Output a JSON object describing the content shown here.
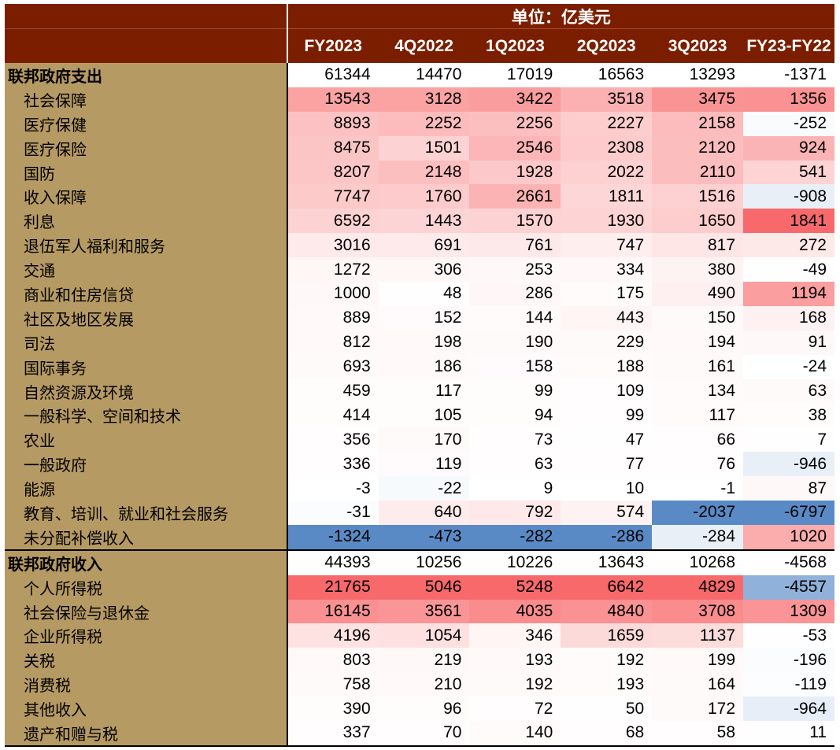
{
  "header": {
    "unit": "单位：亿美元"
  },
  "chart_data": {
    "type": "table",
    "columns": [
      "FY2023",
      "4Q2022",
      "1Q2023",
      "2Q2023",
      "3Q2023",
      "FY23-FY22"
    ],
    "rows": [
      {
        "label": "联邦政府支出",
        "level": 0,
        "values": [
          61344,
          14470,
          17019,
          16563,
          13293,
          -1371
        ]
      },
      {
        "label": "社会保障",
        "level": 1,
        "values": [
          13543,
          3128,
          3422,
          3518,
          3475,
          1356
        ]
      },
      {
        "label": "医疗保健",
        "level": 1,
        "values": [
          8893,
          2252,
          2256,
          2227,
          2158,
          -252
        ]
      },
      {
        "label": "医疗保险",
        "level": 1,
        "values": [
          8475,
          1501,
          2546,
          2308,
          2120,
          924
        ]
      },
      {
        "label": "国防",
        "level": 1,
        "values": [
          8207,
          2148,
          1928,
          2022,
          2110,
          541
        ]
      },
      {
        "label": "收入保障",
        "level": 1,
        "values": [
          7747,
          1760,
          2661,
          1811,
          1516,
          -908
        ]
      },
      {
        "label": "利息",
        "level": 1,
        "values": [
          6592,
          1443,
          1570,
          1930,
          1650,
          1841
        ]
      },
      {
        "label": "退伍军人福利和服务",
        "level": 1,
        "values": [
          3016,
          691,
          761,
          747,
          817,
          272
        ]
      },
      {
        "label": "交通",
        "level": 1,
        "values": [
          1272,
          306,
          253,
          334,
          380,
          -49
        ]
      },
      {
        "label": "商业和住房信贷",
        "level": 1,
        "values": [
          1000,
          48,
          286,
          175,
          490,
          1194
        ]
      },
      {
        "label": "社区及地区发展",
        "level": 1,
        "values": [
          889,
          152,
          144,
          443,
          150,
          168
        ]
      },
      {
        "label": "司法",
        "level": 1,
        "values": [
          812,
          198,
          190,
          229,
          194,
          91
        ]
      },
      {
        "label": "国际事务",
        "level": 1,
        "values": [
          693,
          186,
          158,
          188,
          161,
          -24
        ]
      },
      {
        "label": "自然资源及环境",
        "level": 1,
        "values": [
          459,
          117,
          99,
          109,
          134,
          63
        ]
      },
      {
        "label": "一般科学、空间和技术",
        "level": 1,
        "values": [
          414,
          105,
          94,
          99,
          117,
          38
        ]
      },
      {
        "label": "农业",
        "level": 1,
        "values": [
          356,
          170,
          73,
          47,
          66,
          7
        ]
      },
      {
        "label": "一般政府",
        "level": 1,
        "values": [
          336,
          119,
          63,
          77,
          76,
          -946
        ]
      },
      {
        "label": "能源",
        "level": 1,
        "values": [
          -3,
          -22,
          9,
          10,
          -1,
          87
        ]
      },
      {
        "label": "教育、培训、就业和社会服务",
        "level": 1,
        "values": [
          -31,
          640,
          792,
          574,
          -2037,
          -6797
        ]
      },
      {
        "label": "未分配补偿收入",
        "level": 1,
        "values": [
          -1324,
          -473,
          -282,
          -286,
          -284,
          1020
        ]
      },
      {
        "label": "联邦政府收入",
        "level": 0,
        "values": [
          44393,
          10256,
          10226,
          13643,
          10268,
          -4568
        ]
      },
      {
        "label": "个人所得税",
        "level": 1,
        "values": [
          21765,
          5046,
          5248,
          6642,
          4829,
          -4557
        ]
      },
      {
        "label": "社会保险与退休金",
        "level": 1,
        "values": [
          16145,
          3561,
          4035,
          4840,
          3708,
          1309
        ]
      },
      {
        "label": "企业所得税",
        "level": 1,
        "values": [
          4196,
          1054,
          346,
          1659,
          1137,
          -53
        ]
      },
      {
        "label": "关税",
        "level": 1,
        "values": [
          803,
          219,
          193,
          192,
          199,
          -196
        ]
      },
      {
        "label": "消费税",
        "level": 1,
        "values": [
          758,
          210,
          192,
          193,
          164,
          -119
        ]
      },
      {
        "label": "其他收入",
        "level": 1,
        "values": [
          390,
          96,
          72,
          50,
          172,
          -964
        ]
      },
      {
        "label": "遗产和赠与税",
        "level": 1,
        "values": [
          337,
          70,
          140,
          68,
          58,
          11
        ]
      }
    ]
  },
  "colors": {
    "header_bg": "#7b1e00",
    "label_bg": "#b69a63",
    "positive_max": "#f8696b",
    "negative_max": "#5a8ac6",
    "neutral": "#ffffff"
  }
}
